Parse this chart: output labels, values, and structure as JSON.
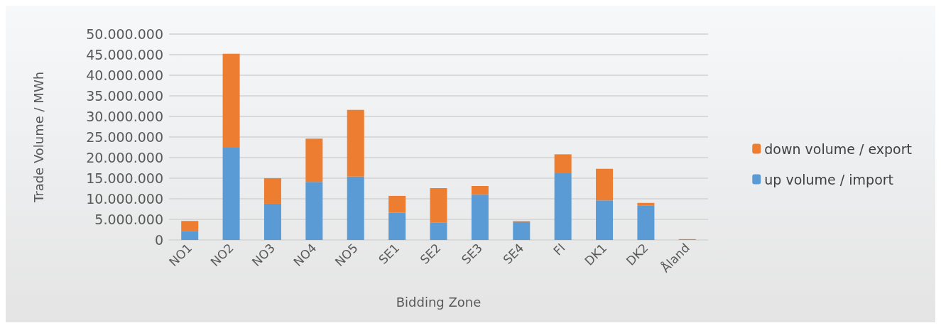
{
  "chart_data": {
    "type": "bar",
    "stacked": true,
    "xlabel": "Bidding Zone",
    "ylabel": "Trade Volume / MWh",
    "categories": [
      "NO1",
      "NO2",
      "NO3",
      "NO4",
      "NO5",
      "SE1",
      "SE2",
      "SE3",
      "SE4",
      "FI",
      "DK1",
      "DK2",
      "Åland"
    ],
    "series": [
      {
        "name": "up volume / import",
        "color": "#5b9bd5",
        "values": [
          2200000,
          22400000,
          8800000,
          14100000,
          15400000,
          6600000,
          4200000,
          11000000,
          4400000,
          16200000,
          9600000,
          8400000,
          0
        ]
      },
      {
        "name": "down volume / export",
        "color": "#ed7d31",
        "values": [
          2400000,
          22800000,
          6200000,
          10500000,
          16200000,
          4100000,
          8400000,
          2100000,
          200000,
          4600000,
          7700000,
          600000,
          200000
        ]
      }
    ],
    "ylim": [
      0,
      50000000
    ],
    "yticks": [
      0,
      {
        "value": 5000000,
        "label": "5.000.000"
      },
      {
        "value": 10000000,
        "label": "10.000.000"
      },
      {
        "value": 15000000,
        "label": "15.000.000"
      },
      {
        "value": 20000000,
        "label": "20.000.000"
      },
      {
        "value": 25000000,
        "label": "25.000.000"
      },
      {
        "value": 30000000,
        "label": "30.000.000"
      },
      {
        "value": 35000000,
        "label": "35.000.000"
      },
      {
        "value": 40000000,
        "label": "40.000.000"
      },
      {
        "value": 45000000,
        "label": "45.000.000"
      },
      {
        "value": 50000000,
        "label": "50.000.000"
      }
    ],
    "grid": "y",
    "legend": "right"
  }
}
